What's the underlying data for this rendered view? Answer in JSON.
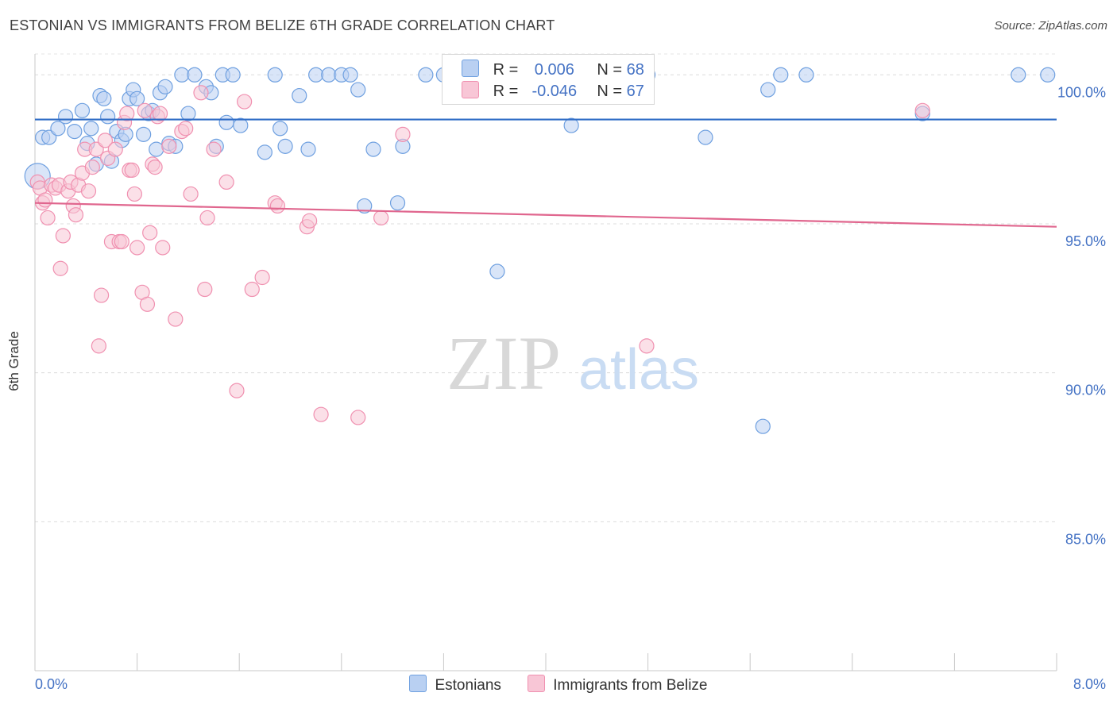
{
  "title": "ESTONIAN VS IMMIGRANTS FROM BELIZE 6TH GRADE CORRELATION CHART",
  "source": "Source: ZipAtlas.com",
  "chart_data": {
    "type": "scatter",
    "ylabel": "6th Grade",
    "xlim": [
      0.0,
      8.0
    ],
    "ylim": [
      80.0,
      100.7
    ],
    "x_tick_labels": [
      "0.0%",
      "8.0%"
    ],
    "y_ticks": [
      85.0,
      90.0,
      95.0,
      100.0
    ],
    "y_tick_labels": [
      "85.0%",
      "90.0%",
      "95.0%",
      "100.0%"
    ],
    "grid": true,
    "legend_position": "top-center",
    "watermark": {
      "zip": "ZIP",
      "atlas": "atlas"
    },
    "series": [
      {
        "name": "Estonians",
        "color": "#6fa0e0",
        "fill": "#b9d0f2",
        "line_color": "#2f6cc6",
        "r_label": "R =",
        "r_value": "0.006",
        "n_label": "N =",
        "n_value": "68",
        "trend": [
          [
            0.0,
            98.5
          ],
          [
            8.0,
            98.5
          ]
        ],
        "points": [
          [
            0.02,
            96.6
          ],
          [
            0.06,
            97.9
          ],
          [
            0.11,
            97.9
          ],
          [
            0.18,
            98.2
          ],
          [
            0.24,
            98.6
          ],
          [
            0.31,
            98.1
          ],
          [
            0.37,
            98.8
          ],
          [
            0.41,
            97.7
          ],
          [
            0.44,
            98.2
          ],
          [
            0.48,
            97.0
          ],
          [
            0.51,
            99.3
          ],
          [
            0.54,
            99.2
          ],
          [
            0.57,
            98.6
          ],
          [
            0.6,
            97.1
          ],
          [
            0.64,
            98.1
          ],
          [
            0.68,
            97.8
          ],
          [
            0.71,
            98.0
          ],
          [
            0.74,
            99.2
          ],
          [
            0.77,
            99.5
          ],
          [
            0.8,
            99.2
          ],
          [
            0.85,
            98.0
          ],
          [
            0.89,
            98.7
          ],
          [
            0.92,
            98.8
          ],
          [
            0.95,
            97.5
          ],
          [
            0.98,
            99.4
          ],
          [
            1.02,
            99.6
          ],
          [
            1.05,
            97.7
          ],
          [
            1.1,
            97.6
          ],
          [
            1.15,
            100.0
          ],
          [
            1.2,
            98.7
          ],
          [
            1.25,
            100.0
          ],
          [
            1.34,
            99.6
          ],
          [
            1.38,
            99.4
          ],
          [
            1.42,
            97.6
          ],
          [
            1.47,
            100.0
          ],
          [
            1.5,
            98.4
          ],
          [
            1.55,
            100.0
          ],
          [
            1.61,
            98.3
          ],
          [
            1.8,
            97.4
          ],
          [
            1.88,
            100.0
          ],
          [
            1.92,
            98.2
          ],
          [
            1.96,
            97.6
          ],
          [
            2.07,
            99.3
          ],
          [
            2.14,
            97.5
          ],
          [
            2.2,
            100.0
          ],
          [
            2.3,
            100.0
          ],
          [
            2.4,
            100.0
          ],
          [
            2.47,
            100.0
          ],
          [
            2.53,
            99.5
          ],
          [
            2.58,
            95.6
          ],
          [
            2.65,
            97.5
          ],
          [
            2.84,
            95.7
          ],
          [
            2.88,
            97.6
          ],
          [
            3.06,
            100.0
          ],
          [
            3.2,
            100.0
          ],
          [
            3.62,
            93.4
          ],
          [
            3.8,
            100.0
          ],
          [
            4.0,
            100.0
          ],
          [
            4.2,
            98.3
          ],
          [
            4.8,
            100.0
          ],
          [
            5.25,
            97.9
          ],
          [
            5.7,
            88.2
          ],
          [
            5.74,
            99.5
          ],
          [
            5.84,
            100.0
          ],
          [
            6.04,
            100.0
          ],
          [
            6.95,
            98.7
          ],
          [
            7.7,
            100.0
          ],
          [
            7.93,
            100.0
          ]
        ]
      },
      {
        "name": "Immigrants from Belize",
        "color": "#f090b0",
        "fill": "#f8c6d6",
        "line_color": "#e0668e",
        "r_label": "R =",
        "r_value": "-0.046",
        "n_label": "N =",
        "n_value": "67",
        "trend": [
          [
            0.0,
            95.7
          ],
          [
            8.0,
            94.9
          ]
        ],
        "points": [
          [
            0.02,
            96.4
          ],
          [
            0.04,
            96.2
          ],
          [
            0.06,
            95.7
          ],
          [
            0.08,
            95.8
          ],
          [
            0.1,
            95.2
          ],
          [
            0.13,
            96.3
          ],
          [
            0.16,
            96.2
          ],
          [
            0.19,
            96.3
          ],
          [
            0.2,
            93.5
          ],
          [
            0.22,
            94.6
          ],
          [
            0.26,
            96.1
          ],
          [
            0.28,
            96.4
          ],
          [
            0.3,
            95.6
          ],
          [
            0.32,
            95.3
          ],
          [
            0.34,
            96.3
          ],
          [
            0.37,
            96.7
          ],
          [
            0.39,
            97.5
          ],
          [
            0.42,
            96.1
          ],
          [
            0.45,
            96.9
          ],
          [
            0.48,
            97.5
          ],
          [
            0.5,
            90.9
          ],
          [
            0.52,
            92.6
          ],
          [
            0.55,
            97.8
          ],
          [
            0.57,
            97.2
          ],
          [
            0.6,
            94.4
          ],
          [
            0.63,
            97.5
          ],
          [
            0.66,
            94.4
          ],
          [
            0.68,
            94.4
          ],
          [
            0.7,
            98.4
          ],
          [
            0.72,
            98.7
          ],
          [
            0.74,
            96.8
          ],
          [
            0.76,
            96.8
          ],
          [
            0.78,
            96.0
          ],
          [
            0.8,
            94.2
          ],
          [
            0.84,
            92.7
          ],
          [
            0.86,
            98.8
          ],
          [
            0.88,
            92.3
          ],
          [
            0.9,
            94.7
          ],
          [
            0.92,
            97.0
          ],
          [
            0.94,
            96.9
          ],
          [
            0.96,
            98.6
          ],
          [
            0.98,
            98.7
          ],
          [
            1.0,
            94.2
          ],
          [
            1.05,
            97.6
          ],
          [
            1.1,
            91.8
          ],
          [
            1.15,
            98.1
          ],
          [
            1.18,
            98.2
          ],
          [
            1.22,
            96.0
          ],
          [
            1.3,
            99.4
          ],
          [
            1.33,
            92.8
          ],
          [
            1.35,
            95.2
          ],
          [
            1.4,
            97.5
          ],
          [
            1.5,
            96.4
          ],
          [
            1.58,
            89.4
          ],
          [
            1.64,
            99.1
          ],
          [
            1.7,
            92.8
          ],
          [
            1.78,
            93.2
          ],
          [
            1.88,
            95.7
          ],
          [
            1.9,
            95.6
          ],
          [
            2.13,
            94.9
          ],
          [
            2.15,
            95.1
          ],
          [
            2.24,
            88.6
          ],
          [
            2.53,
            88.5
          ],
          [
            2.71,
            95.2
          ],
          [
            2.88,
            98.0
          ],
          [
            4.79,
            90.9
          ],
          [
            6.95,
            98.8
          ]
        ]
      }
    ]
  }
}
